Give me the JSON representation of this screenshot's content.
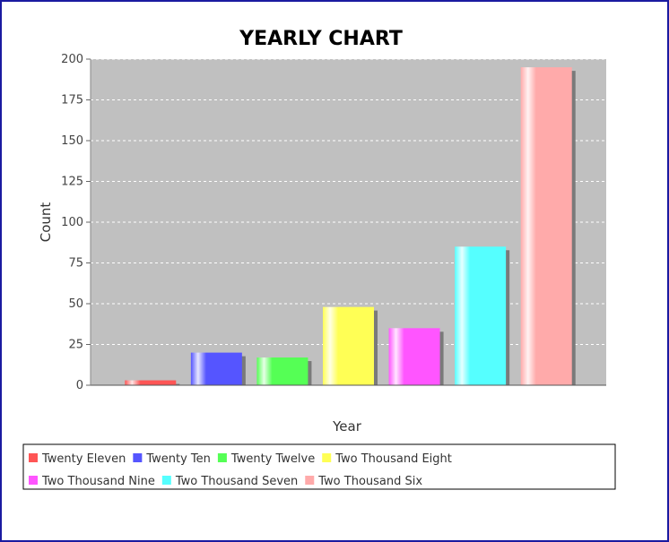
{
  "chart_data": {
    "type": "bar",
    "title": "YEARLY CHART",
    "xlabel": "Year",
    "ylabel": "Count",
    "ylim": [
      0,
      200
    ],
    "yticks": [
      0,
      25,
      50,
      75,
      100,
      125,
      150,
      175,
      200
    ],
    "grid": true,
    "legend_position": "bottom",
    "series": [
      {
        "name": "Twenty Eleven",
        "value": 3,
        "color": "#ff5555"
      },
      {
        "name": "Twenty Ten",
        "value": 20,
        "color": "#5555ff"
      },
      {
        "name": "Twenty Twelve",
        "value": 17,
        "color": "#55ff55"
      },
      {
        "name": "Two Thousand Eight",
        "value": 48,
        "color": "#ffff55"
      },
      {
        "name": "Two Thousand Nine",
        "value": 35,
        "color": "#ff55ff"
      },
      {
        "name": "Two Thousand Seven",
        "value": 85,
        "color": "#55ffff"
      },
      {
        "name": "Two Thousand Six",
        "value": 195,
        "color": "#ffaaaa"
      }
    ],
    "plot_background": "#c0c0c0"
  }
}
